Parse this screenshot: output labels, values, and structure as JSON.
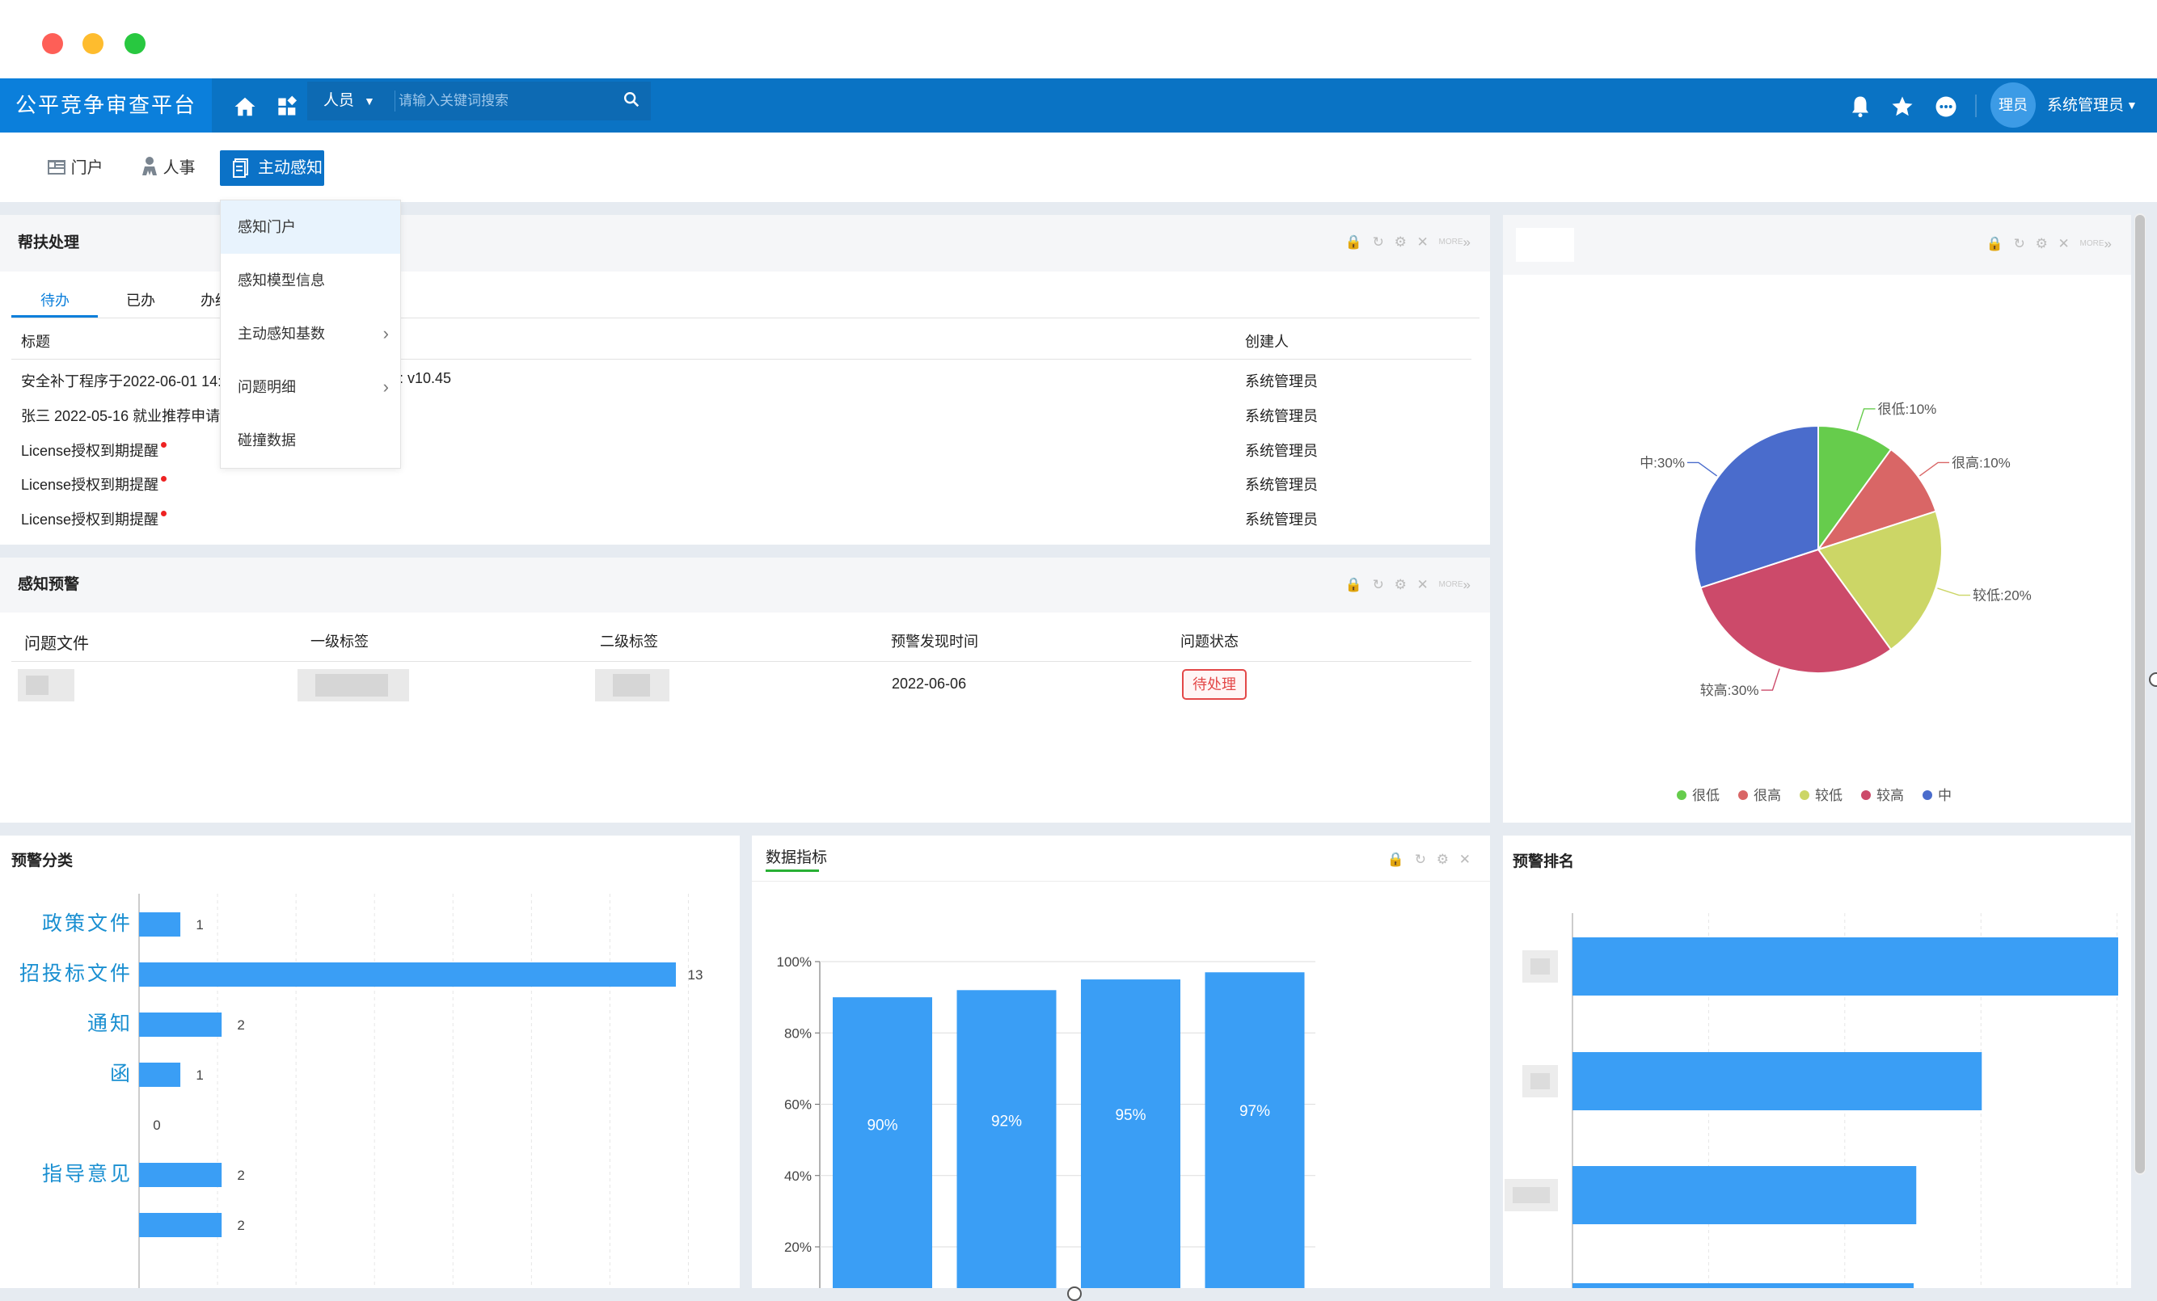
{
  "header": {
    "brand": "公平竞争审查平台",
    "category_select": "人员",
    "search_placeholder": "请输入关键词搜索",
    "avatar_text": "理员",
    "user_name": "系统管理员"
  },
  "subnav": {
    "items": [
      {
        "label": "门户",
        "icon": "portal-grid-icon"
      },
      {
        "label": "人事",
        "icon": "person-icon"
      },
      {
        "label": "主动感知",
        "icon": "document-icon",
        "active": true
      }
    ]
  },
  "dropdown": {
    "items": [
      {
        "label": "感知门户",
        "has_submenu": false,
        "highlighted": true
      },
      {
        "label": "感知模型信息",
        "has_submenu": false
      },
      {
        "label": "主动感知基数",
        "has_submenu": true
      },
      {
        "label": "问题明细",
        "has_submenu": true
      },
      {
        "label": "碰撞数据",
        "has_submenu": false
      }
    ]
  },
  "help_panel": {
    "title": "帮扶处理",
    "tools_more": "MORE",
    "tabs": [
      "待办",
      "已办",
      "办结"
    ],
    "columns": {
      "title": "标题",
      "creator": "创建人"
    },
    "rows": [
      {
        "title": "安全补丁程序于2022-06-01 14:3",
        "suffix": ": v10.45",
        "creator": "系统管理员",
        "dot": false
      },
      {
        "title": "张三 2022-05-16 就业推荐申请",
        "suffix": "",
        "creator": "系统管理员",
        "dot": false
      },
      {
        "title": "License授权到期提醒",
        "suffix": "",
        "creator": "系统管理员",
        "dot": true
      },
      {
        "title": "License授权到期提醒",
        "suffix": "",
        "creator": "系统管理员",
        "dot": true
      },
      {
        "title": "License授权到期提醒",
        "suffix": "",
        "creator": "系统管理员",
        "dot": true
      }
    ]
  },
  "warning_panel": {
    "title": "感知预警",
    "tools_more": "MORE",
    "columns": [
      "问题文件",
      "一级标签",
      "二级标签",
      "预警发现时间",
      "问题状态"
    ],
    "row": {
      "date": "2022-06-06",
      "status": "待处理"
    }
  },
  "pie_panel": {
    "tools_more": "MORE",
    "colors": {
      "很低": "#66cc4c",
      "很高": "#d96666",
      "较低": "#ccd666",
      "较高": "#cc4a6a",
      "中": "#4a6ccc"
    }
  },
  "category_panel": {
    "title": "预警分类"
  },
  "metrics_panel": {
    "title": "数据指标"
  },
  "ranking_panel": {
    "title": "预警排名"
  },
  "chart_data": [
    {
      "type": "pie",
      "slices": [
        {
          "label": "很低",
          "value": 10,
          "color": "#66cc4c"
        },
        {
          "label": "很高",
          "value": 10,
          "color": "#d96666"
        },
        {
          "label": "较低",
          "value": 20,
          "color": "#ccd666"
        },
        {
          "label": "较高",
          "value": 30,
          "color": "#cc4a6a"
        },
        {
          "label": "中",
          "value": 30,
          "color": "#4a6ccc"
        }
      ],
      "data_labels": [
        "很低:10%",
        "很高:10%",
        "较低:20%",
        "较高:30%",
        "中:30%"
      ],
      "legend": [
        "很低",
        "很高",
        "较低",
        "较高",
        "中"
      ],
      "legend_position": "bottom"
    },
    {
      "type": "bar",
      "orientation": "horizontal",
      "categories": [
        "政策文件",
        "招投标文件",
        "通知",
        "函",
        "",
        "指导意见",
        "",
        ""
      ],
      "values": [
        1,
        13,
        2,
        1,
        0,
        2,
        2,
        null
      ],
      "xlim": [
        0,
        15
      ],
      "grid": true
    },
    {
      "type": "bar",
      "categories": [
        "",
        "",
        "",
        ""
      ],
      "values": [
        90,
        92,
        95,
        97
      ],
      "data_labels": [
        "90%",
        "92%",
        "95%",
        "97%"
      ],
      "yticks": [
        "20%",
        "40%",
        "60%",
        "80%",
        "100%"
      ],
      "ylim": [
        0,
        100
      ],
      "grid": true
    },
    {
      "type": "bar",
      "orientation": "horizontal",
      "categories": [
        "",
        "",
        "",
        ""
      ],
      "values": [
        100,
        75,
        63,
        null
      ],
      "grid": true
    }
  ]
}
